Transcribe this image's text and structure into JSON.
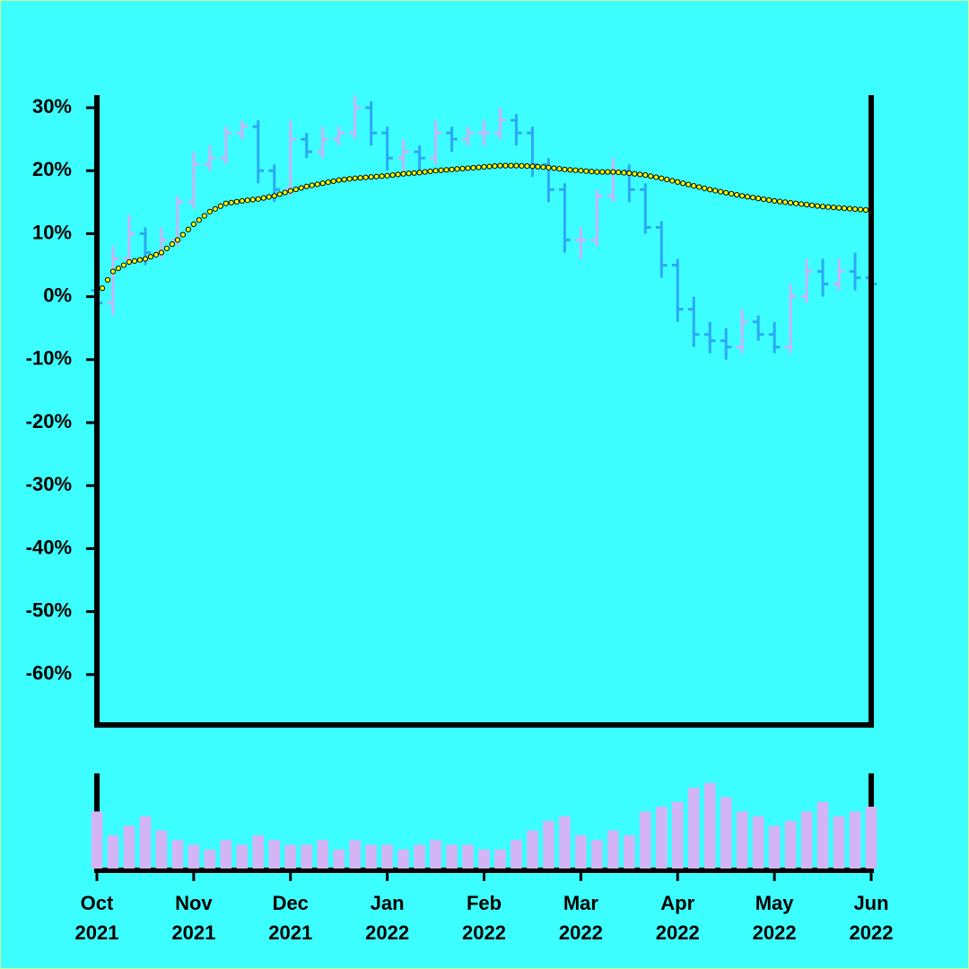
{
  "chart_data": {
    "type": "ohlc",
    "x": [
      0,
      1,
      2,
      3,
      4,
      5,
      6,
      7,
      8,
      9,
      10,
      11,
      12,
      13,
      14,
      15,
      16,
      17,
      18,
      19,
      20,
      21,
      22,
      23,
      24,
      25,
      26,
      27,
      28,
      29,
      30,
      31,
      32,
      33,
      34,
      35,
      36,
      37,
      38,
      39,
      40,
      41,
      42,
      43,
      44,
      45,
      46,
      47,
      48
    ],
    "xlim": [
      0,
      48
    ],
    "xticks": [
      {
        "value": 0,
        "label": "Oct\n2021"
      },
      {
        "value": 6,
        "label": "Nov\n2021"
      },
      {
        "value": 12,
        "label": "Dec\n2021"
      },
      {
        "value": 18,
        "label": "Jan\n2022"
      },
      {
        "value": 24,
        "label": "Feb\n2022"
      },
      {
        "value": 30,
        "label": "Mar\n2022"
      },
      {
        "value": 36,
        "label": "Apr\n2022"
      },
      {
        "value": 42,
        "label": "May\n2022"
      },
      {
        "value": 48,
        "label": "Jun\n2022"
      }
    ],
    "ylim": [
      -68,
      32
    ],
    "yticks": [
      {
        "value": 30,
        "label": "30%"
      },
      {
        "value": 20,
        "label": "20%"
      },
      {
        "value": 10,
        "label": "10%"
      },
      {
        "value": 0,
        "label": "0%"
      },
      {
        "value": -10,
        "label": "-10%"
      },
      {
        "value": -20,
        "label": "-20%"
      },
      {
        "value": -30,
        "label": "-30%"
      },
      {
        "value": -40,
        "label": "-40%"
      },
      {
        "value": -50,
        "label": "-50%"
      },
      {
        "value": -60,
        "label": "-60%"
      }
    ],
    "up_color": "#c9b3f5",
    "down_color": "#2aa8f5",
    "open": [
      1,
      -1,
      6,
      10,
      7,
      9,
      15,
      21,
      22,
      26,
      27,
      20,
      17,
      25,
      23,
      25,
      26,
      30,
      26,
      22,
      23,
      22,
      26,
      25,
      26,
      26,
      28,
      26,
      21,
      17,
      9,
      9,
      16,
      20,
      17,
      11,
      5,
      -2,
      -6,
      -7,
      -8,
      -4,
      -6,
      -8,
      0,
      4,
      2,
      4,
      3
    ],
    "high": [
      3,
      8,
      13,
      11,
      11,
      16,
      23,
      24,
      27,
      28,
      28,
      21,
      28,
      26,
      27,
      27,
      32,
      31,
      27,
      25,
      24,
      28,
      27,
      27,
      28,
      30,
      29,
      27,
      22,
      18,
      11,
      17,
      22,
      21,
      18,
      12,
      6,
      0,
      -4,
      -5,
      -2,
      -3,
      -4,
      2,
      6,
      6,
      6,
      7,
      5
    ],
    "low": [
      -4,
      -3,
      5,
      5,
      6,
      8,
      14,
      20,
      21,
      25,
      18,
      15,
      16,
      22,
      22,
      24,
      25,
      24,
      20,
      20,
      20,
      21,
      23,
      24,
      24,
      25,
      24,
      19,
      15,
      7,
      6,
      8,
      15,
      15,
      10,
      3,
      -4,
      -8,
      -9,
      -10,
      -9,
      -7,
      -9,
      -9,
      -1,
      0,
      1,
      1,
      0
    ],
    "close": [
      -1,
      6,
      10,
      7,
      9,
      15,
      21,
      22,
      26,
      27,
      20,
      17,
      25,
      23,
      25,
      26,
      30,
      26,
      22,
      23,
      22,
      26,
      25,
      26,
      26,
      28,
      26,
      21,
      17,
      9,
      9,
      16,
      20,
      17,
      11,
      5,
      -2,
      -6,
      -7,
      -8,
      -4,
      -6,
      -8,
      0,
      4,
      2,
      4,
      3,
      2
    ],
    "moving_average": {
      "color": "#ffff00",
      "values": [
        0,
        4,
        5.5,
        6,
        7,
        9,
        11.5,
        13.5,
        14.8,
        15.2,
        15.5,
        16,
        16.8,
        17.5,
        18,
        18.5,
        18.8,
        19,
        19.2,
        19.5,
        19.7,
        20,
        20.2,
        20.4,
        20.6,
        20.8,
        20.8,
        20.7,
        20.5,
        20.2,
        20,
        19.8,
        19.8,
        19.6,
        19.3,
        18.8,
        18.2,
        17.6,
        17,
        16.5,
        16,
        15.6,
        15.2,
        14.9,
        14.6,
        14.3,
        14.1,
        13.9,
        13.7
      ]
    },
    "volume": {
      "color": "#d3b5f5",
      "ylim": [
        0,
        100
      ],
      "values": [
        60,
        35,
        45,
        55,
        40,
        30,
        25,
        20,
        30,
        25,
        35,
        30,
        25,
        25,
        30,
        20,
        30,
        25,
        25,
        20,
        25,
        30,
        25,
        25,
        20,
        20,
        30,
        40,
        50,
        55,
        35,
        30,
        40,
        35,
        60,
        65,
        70,
        85,
        90,
        75,
        60,
        55,
        45,
        50,
        60,
        70,
        55,
        60,
        65
      ]
    }
  }
}
